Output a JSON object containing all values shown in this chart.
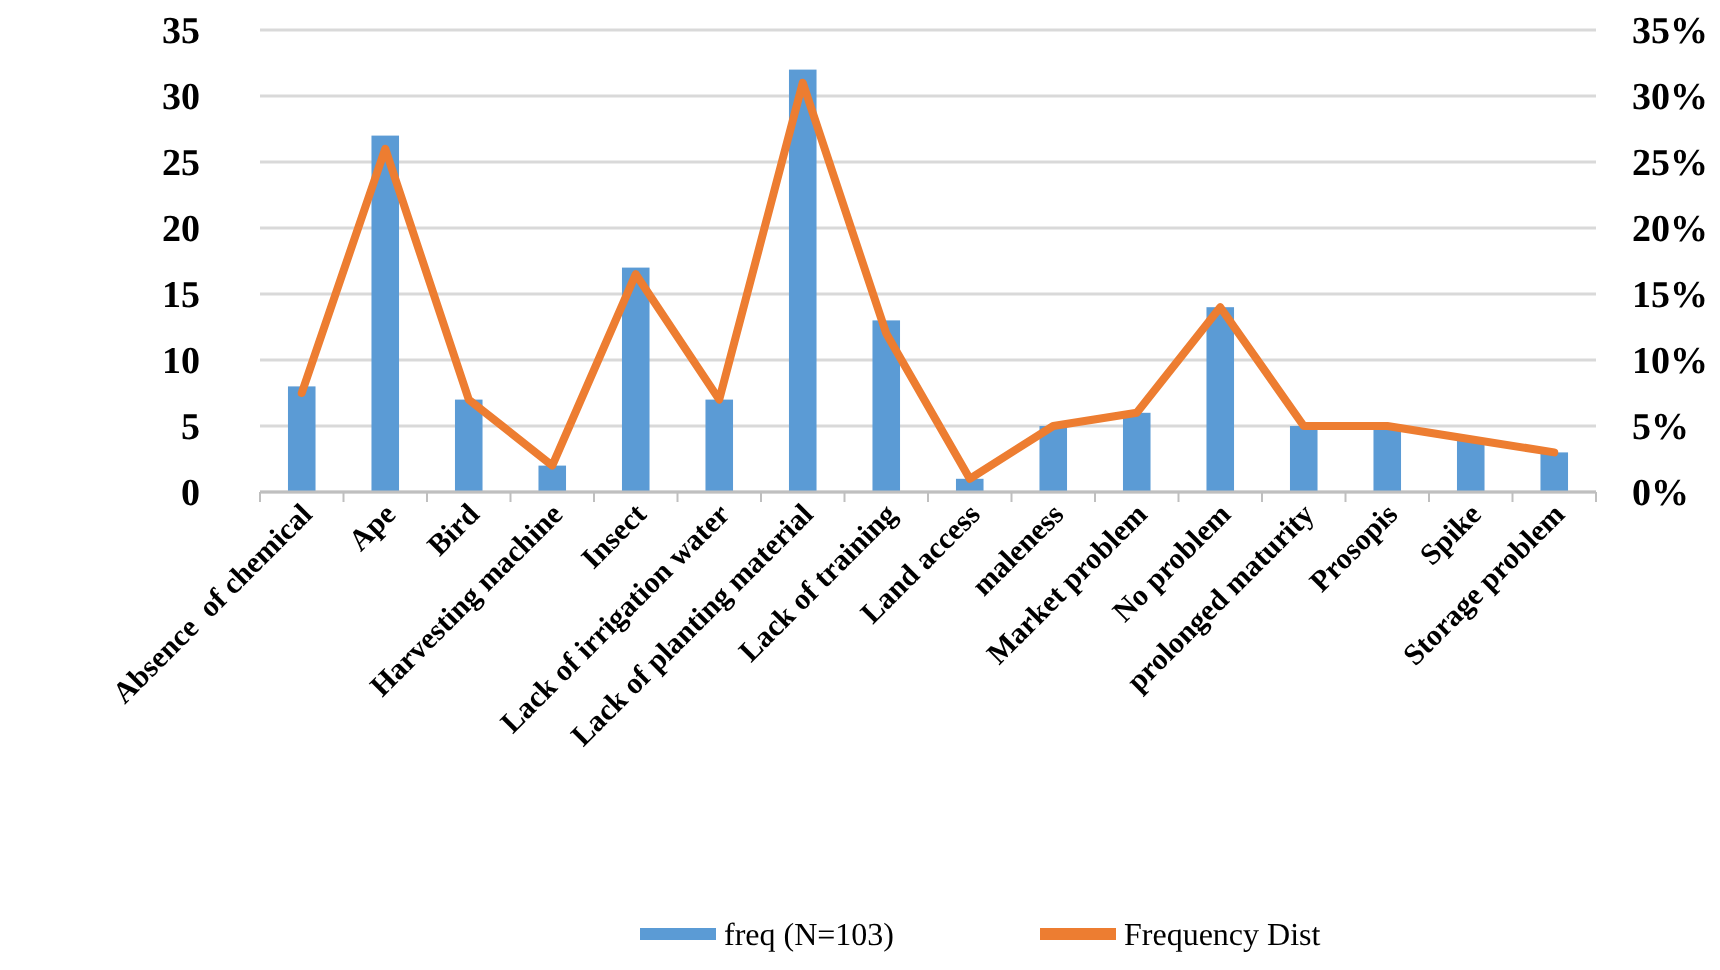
{
  "chart_data": {
    "type": "bar",
    "categories": [
      "Absence  of chemical",
      "Ape",
      "Bird",
      "Harvesting machine",
      "Insect",
      "Lack of irrigation water",
      "Lack of planting material",
      "Lack of training",
      "Land access",
      "maleness",
      "Market problem",
      "No problem",
      "prolonged maturity",
      "Prosopis",
      "Spike",
      "Storage problem"
    ],
    "series": [
      {
        "name": "freq (N=103)",
        "color": "#5b9bd5",
        "values": [
          8,
          27,
          7,
          2,
          17,
          7,
          32,
          13,
          1,
          5,
          6,
          14,
          5,
          5,
          4,
          3
        ]
      },
      {
        "name": "Frequency Dist",
        "type": "line",
        "axis": "y2",
        "color": "#ed7d31",
        "values": [
          7.5,
          26,
          7,
          2,
          16.5,
          7,
          31,
          12,
          1,
          5,
          6,
          14,
          5,
          5,
          4,
          3
        ]
      }
    ],
    "ylim": [
      0,
      35
    ],
    "yticks": [
      0,
      5,
      10,
      15,
      20,
      25,
      30,
      35
    ],
    "y2lim": [
      0,
      35
    ],
    "y2ticks": [
      {
        "value": 0,
        "label": "0%"
      },
      {
        "value": 5,
        "label": "5%"
      },
      {
        "value": 10,
        "label": "10%"
      },
      {
        "value": 15,
        "label": "15%"
      },
      {
        "value": 20,
        "label": "20%"
      },
      {
        "value": 25,
        "label": "25%"
      },
      {
        "value": 30,
        "label": "30%"
      },
      {
        "value": 35,
        "label": "35%"
      }
    ],
    "grid": "y",
    "legend": "bottom",
    "marker": "none",
    "line_style": "solid"
  }
}
